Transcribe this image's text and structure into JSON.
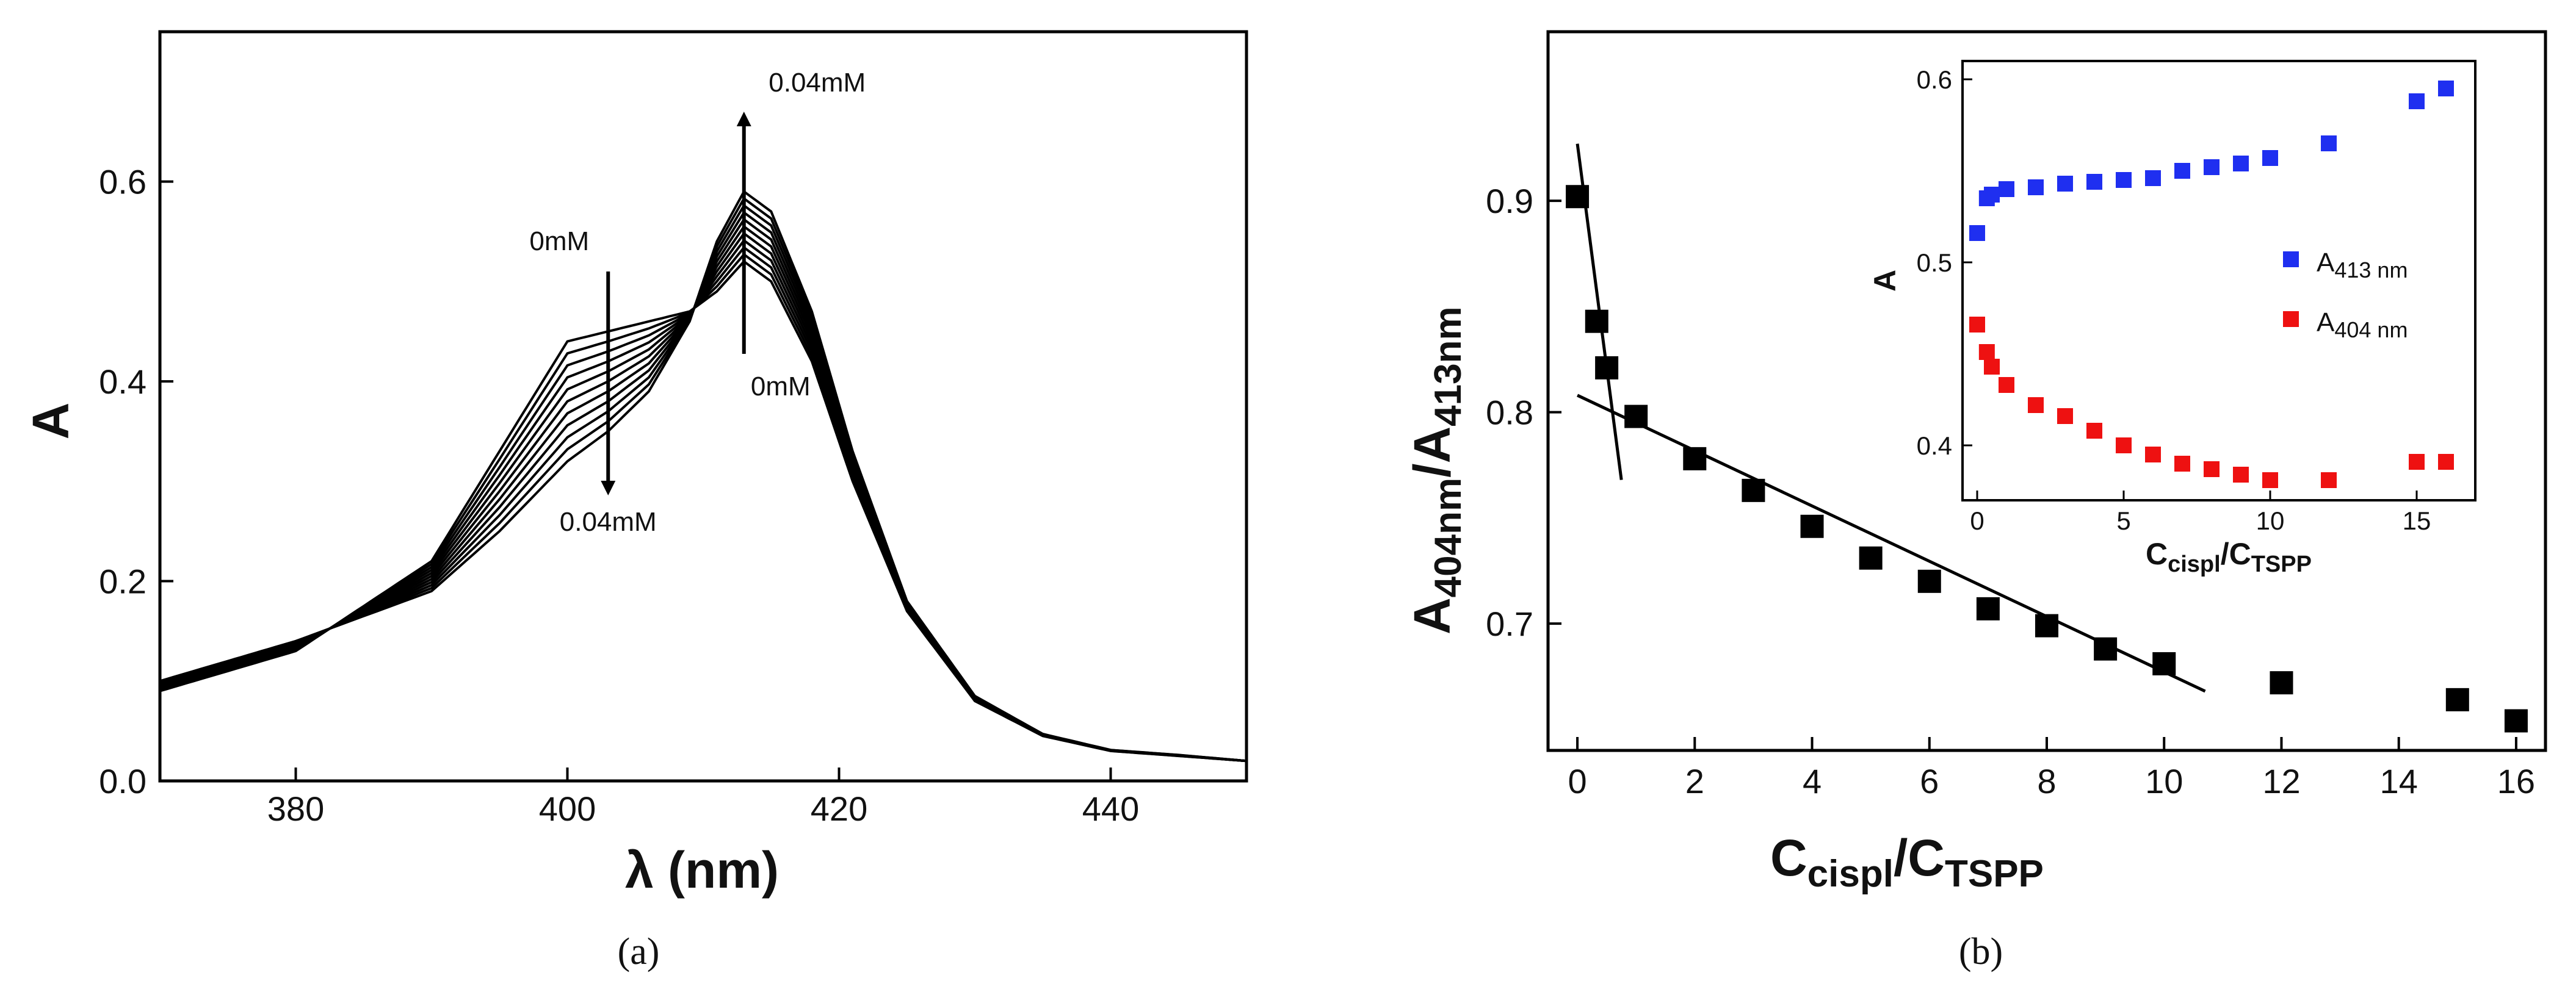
{
  "chart_data": [
    {
      "type": "line",
      "panel_caption": "(a)",
      "xlabel": "λ (nm)",
      "ylabel": "A",
      "xlim": [
        370,
        450
      ],
      "ylim": [
        0,
        0.75
      ],
      "xticks": [
        "380",
        "400",
        "420",
        "440"
      ],
      "yticks": [
        "0.0",
        "0.2",
        "0.4",
        "0.6"
      ],
      "series": [
        {
          "name": "0mM",
          "x": [
            370,
            380,
            390,
            395,
            400,
            403,
            406,
            409,
            411,
            413,
            415,
            418,
            421,
            425,
            430,
            435,
            440,
            445,
            450
          ],
          "y": [
            0.09,
            0.13,
            0.22,
            0.33,
            0.44,
            0.45,
            0.46,
            0.47,
            0.49,
            0.52,
            0.5,
            0.42,
            0.3,
            0.17,
            0.08,
            0.045,
            0.03,
            0.025,
            0.02
          ]
        },
        {
          "name": "0.04mM",
          "x": [
            370,
            380,
            390,
            395,
            400,
            403,
            406,
            409,
            411,
            413,
            415,
            418,
            421,
            425,
            430,
            435,
            440,
            445,
            450
          ],
          "y": [
            0.1,
            0.14,
            0.19,
            0.25,
            0.32,
            0.35,
            0.39,
            0.46,
            0.54,
            0.59,
            0.57,
            0.47,
            0.33,
            0.18,
            0.085,
            0.047,
            0.031,
            0.026,
            0.02
          ]
        }
      ],
      "curve_count": 11,
      "annotations": [
        {
          "text": "0.04mM",
          "arrow": "up",
          "x": 413
        },
        {
          "text": "0mM",
          "arrow": "up-origin",
          "x": 413
        },
        {
          "text": "0mM",
          "arrow": "down-origin",
          "x": 403
        },
        {
          "text": "0.04mM",
          "arrow": "down",
          "x": 403
        }
      ]
    },
    {
      "type": "scatter",
      "panel_caption": "(b)",
      "xlabel": {
        "main": "C",
        "sub1": "cispl",
        "sep": "/C",
        "sub2": "TSPP"
      },
      "ylabel": {
        "a": "A",
        "sub1": "404nm",
        "sep": "/A",
        "sub2": "413nm"
      },
      "xlim": [
        -0.5,
        16.5
      ],
      "ylim": [
        0.64,
        0.98
      ],
      "xticks": [
        "0",
        "2",
        "4",
        "6",
        "8",
        "10",
        "12",
        "14",
        "16"
      ],
      "yticks": [
        "0.7",
        "0.8",
        "0.9"
      ],
      "series": [
        {
          "name": "A404nm/A413nm",
          "color": "#000000",
          "x": [
            0,
            0.33,
            0.5,
            1,
            2,
            3,
            4,
            5,
            6,
            7,
            8,
            9,
            10,
            12,
            15,
            16
          ],
          "y": [
            0.902,
            0.843,
            0.821,
            0.798,
            0.778,
            0.763,
            0.746,
            0.731,
            0.72,
            0.707,
            0.699,
            0.688,
            0.681,
            0.672,
            0.664,
            0.654
          ]
        }
      ],
      "fit_lines": [
        {
          "x": [
            0.0,
            0.75
          ],
          "y": [
            0.927,
            0.768
          ]
        },
        {
          "x": [
            0.0,
            10.7
          ],
          "y": [
            0.808,
            0.668
          ]
        }
      ],
      "inset": {
        "type": "scatter",
        "xlabel": {
          "main": "C",
          "sub1": "cispl",
          "sep": "/C",
          "sub2": "TSPP"
        },
        "ylabel": "A",
        "xlim": [
          -0.5,
          17
        ],
        "ylim": [
          0.37,
          0.61
        ],
        "xticks": [
          "0",
          "5",
          "10",
          "15"
        ],
        "yticks": [
          "0.4",
          "0.5",
          "0.6"
        ],
        "legend_position": "center-right",
        "series": [
          {
            "name": "A413 nm",
            "label_main": "A",
            "label_sub": "413 nm",
            "color": "#1f2ff0",
            "x": [
              0,
              0.33,
              0.5,
              1,
              2,
              3,
              4,
              5,
              6,
              7,
              8,
              9,
              10,
              12,
              15,
              16
            ],
            "y": [
              0.516,
              0.535,
              0.537,
              0.54,
              0.541,
              0.543,
              0.544,
              0.545,
              0.546,
              0.55,
              0.552,
              0.554,
              0.557,
              0.565,
              0.588,
              0.595
            ]
          },
          {
            "name": "A404 nm",
            "label_main": "A",
            "label_sub": "404 nm",
            "color": "#ee1111",
            "x": [
              0,
              0.33,
              0.5,
              1,
              2,
              3,
              4,
              5,
              6,
              7,
              8,
              9,
              10,
              12,
              15,
              16
            ],
            "y": [
              0.466,
              0.451,
              0.443,
              0.433,
              0.422,
              0.416,
              0.408,
              0.4,
              0.395,
              0.39,
              0.387,
              0.384,
              0.381,
              0.381,
              0.391,
              0.391
            ]
          }
        ]
      }
    }
  ]
}
